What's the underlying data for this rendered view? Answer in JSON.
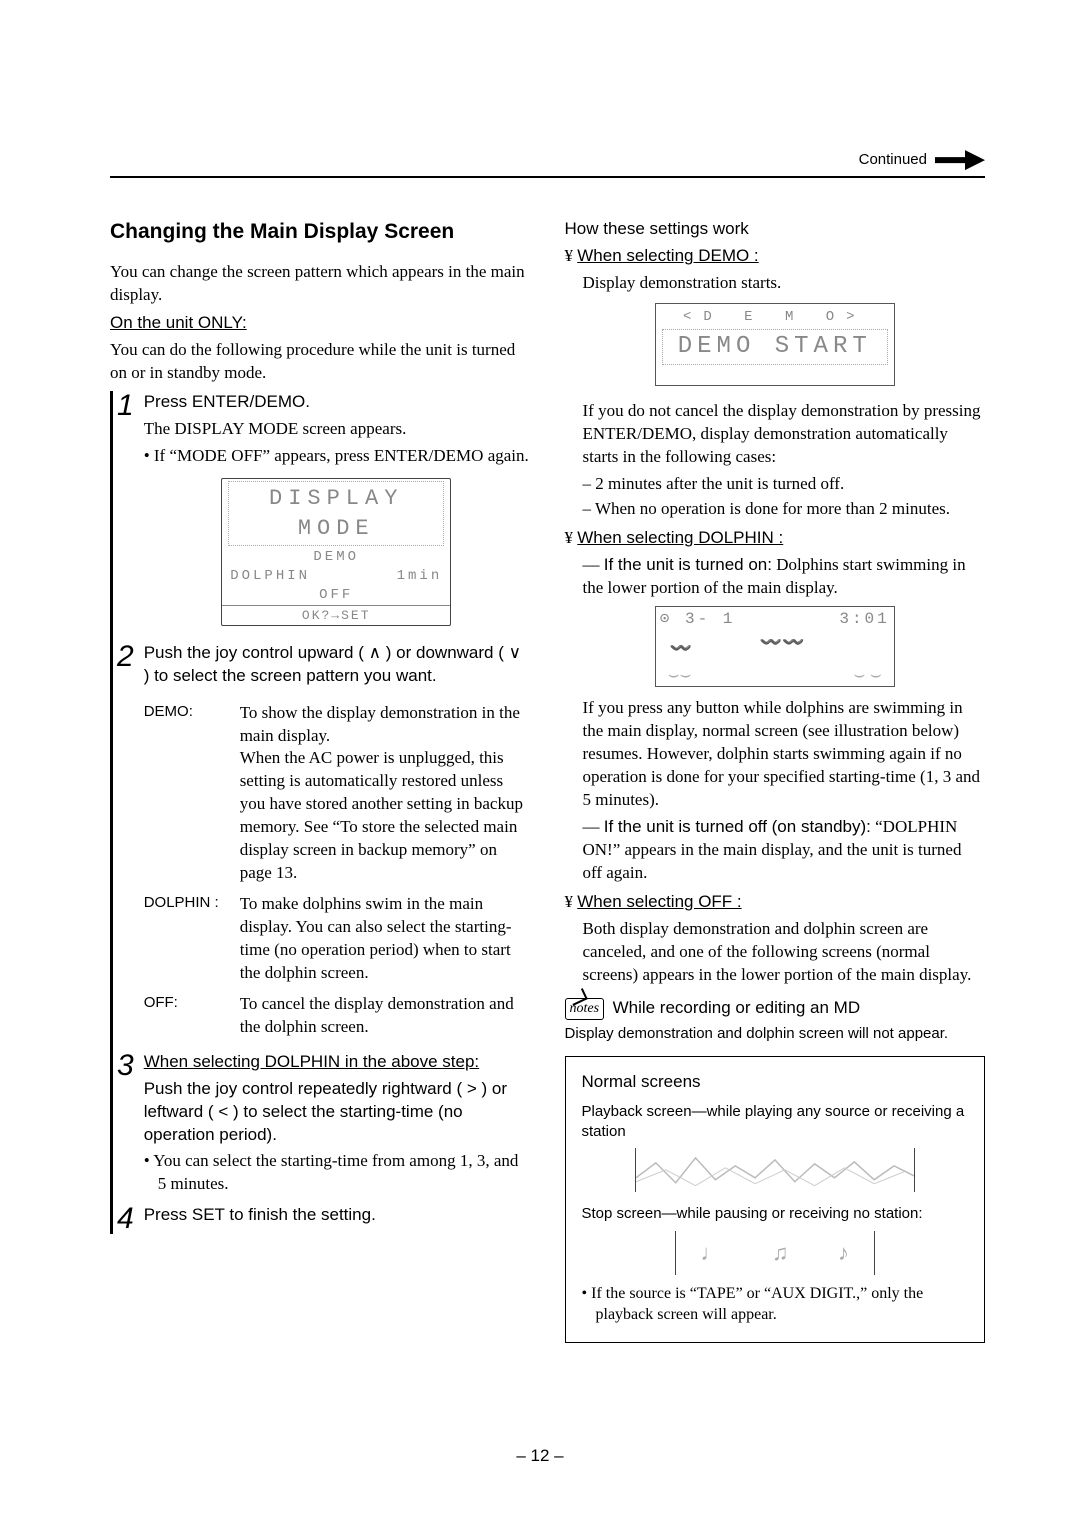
{
  "header": {
    "continued": "Continued"
  },
  "left": {
    "title": "Changing the Main Display Screen",
    "intro": "You can change the screen pattern which appears in the main display.",
    "on_unit_only": "On the unit ONLY:",
    "on_unit_text": "You can do the following procedure while the unit is turned on or in standby mode.",
    "step1_num": "1",
    "step1_label": "Press ENTER/DEMO.",
    "step1_line1": "The DISPLAY MODE screen appears.",
    "step1_bullet": "If “MODE OFF” appears, press ENTER/DEMO again.",
    "lcd_menu": {
      "big": "DISPLAY MODE",
      "opt_demo": "DEMO",
      "opt_dolphin": "DOLPHIN",
      "opt_time": "1min",
      "opt_off": "OFF",
      "ok": "OK?→SET"
    },
    "step2_num": "2",
    "step2_label_a": "Push the joy control upward (",
    "step2_label_b": ") or downward (",
    "step2_label_c": ") to select the screen pattern you want.",
    "options": {
      "demo_lbl": "DEMO:",
      "demo_txt": "To show the display demonstration in the main display.\nWhen the AC power is unplugged, this setting is automatically restored unless you have stored another setting in backup memory. See “To store the selected main display screen in backup memory” on page 13.",
      "dolphin_lbl": "DOLPHIN :",
      "dolphin_txt": "To make dolphins swim in the main display. You can also select the starting-time (no operation period) when to start the dolphin screen.",
      "off_lbl": "OFF:",
      "off_txt": "To cancel the display demonstration and the dolphin screen."
    },
    "step3_num": "3",
    "step3_u": "When selecting DOLPHIN  in the above step:",
    "step3_a": "Push the joy control repeatedly rightward (",
    "step3_b": ") or leftward (",
    "step3_c": ") to select the starting-time (no operation period).",
    "step3_bullet": "You can select the starting-time from among  1, 3, and 5 minutes.",
    "step4_num": "4",
    "step4_label": "Press SET to finish the setting."
  },
  "right": {
    "how_title": "How these settings work",
    "sel_demo": "When selecting  DEMO :",
    "sel_demo_txt": "Display demonstration starts.",
    "lcd_demo": {
      "small": "<D E M O>",
      "big": "DEMO START"
    },
    "demo_para": "If you do not cancel the display demonstration by pressing ENTER/DEMO, display demonstration automatically starts in the following cases:",
    "demo_b1": "2 minutes after the unit is turned off.",
    "demo_b2": "When no operation is done for more than 2 minutes.",
    "sel_dolphin": "When selecting  DOLPHIN :",
    "dolphin_on_a": "If the unit is turned on:",
    "dolphin_on_b": "Dolphins start swimming in the lower portion of the main display.",
    "lcd_dolphin": {
      "cd": "⊙ 3- 1",
      "time": "3:01"
    },
    "dolphin_para": "If you press any button while dolphins are swimming in the main display, normal screen (see illustration below) resumes. However, dolphin starts swimming again if no operation is done for your specified starting-time (1, 3 and 5 minutes).",
    "dolphin_off_a": "If the unit is turned off (on standby):",
    "dolphin_off_b": "“DOLPHIN ON!” appears in the main display, and the unit is turned off again.",
    "sel_off": "When selecting  OFF :",
    "off_para": "Both display demonstration and dolphin screen are canceled, and one of the following screens (normal screens) appears in the lower portion of the main display.",
    "note_label": "notes",
    "note_title": "While recording or editing an MD",
    "note_text": "Display demonstration and dolphin screen will not appear.",
    "box": {
      "title": "Normal screens",
      "play_a": "Playback screen",
      "play_b": "—while playing any source or receiving a station",
      "stop_a": "Stop screen",
      "stop_b": "—while pausing or receiving no station:",
      "foot": "If the source is “TAPE” or “AUX DIGIT.,” only the playback screen will appear."
    }
  },
  "page_number": "– 12 –"
}
